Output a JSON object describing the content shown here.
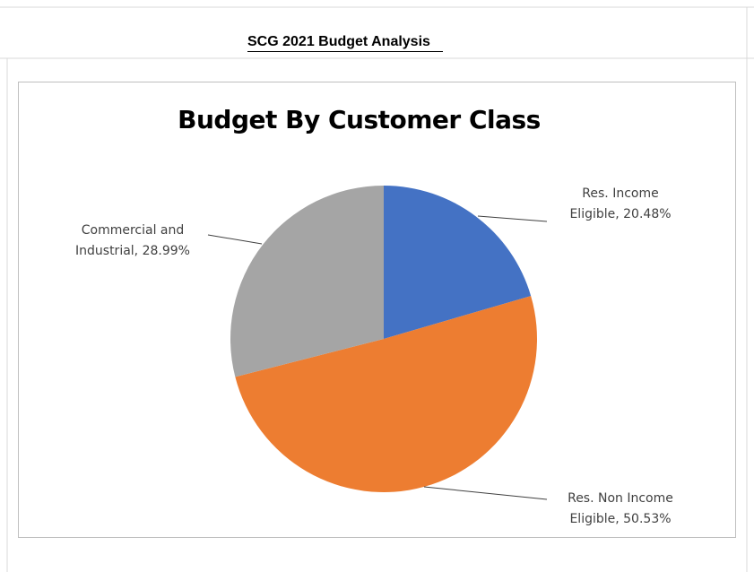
{
  "sheet_title": "SCG 2021 Budget Analysis",
  "chart_data": {
    "type": "pie",
    "title": "Budget By Customer Class",
    "values": [
      20.48,
      50.53,
      28.99
    ],
    "value_labels": [
      "Res. Income Eligible, 20.48%",
      "Res. Non Income Eligible, 50.53%",
      "Commercial and Industrial, 28.99%"
    ],
    "colors": [
      "#4472c4",
      "#ed7d31",
      "#a5a5a5"
    ],
    "start_angle": 0,
    "direction": "clockwise"
  }
}
